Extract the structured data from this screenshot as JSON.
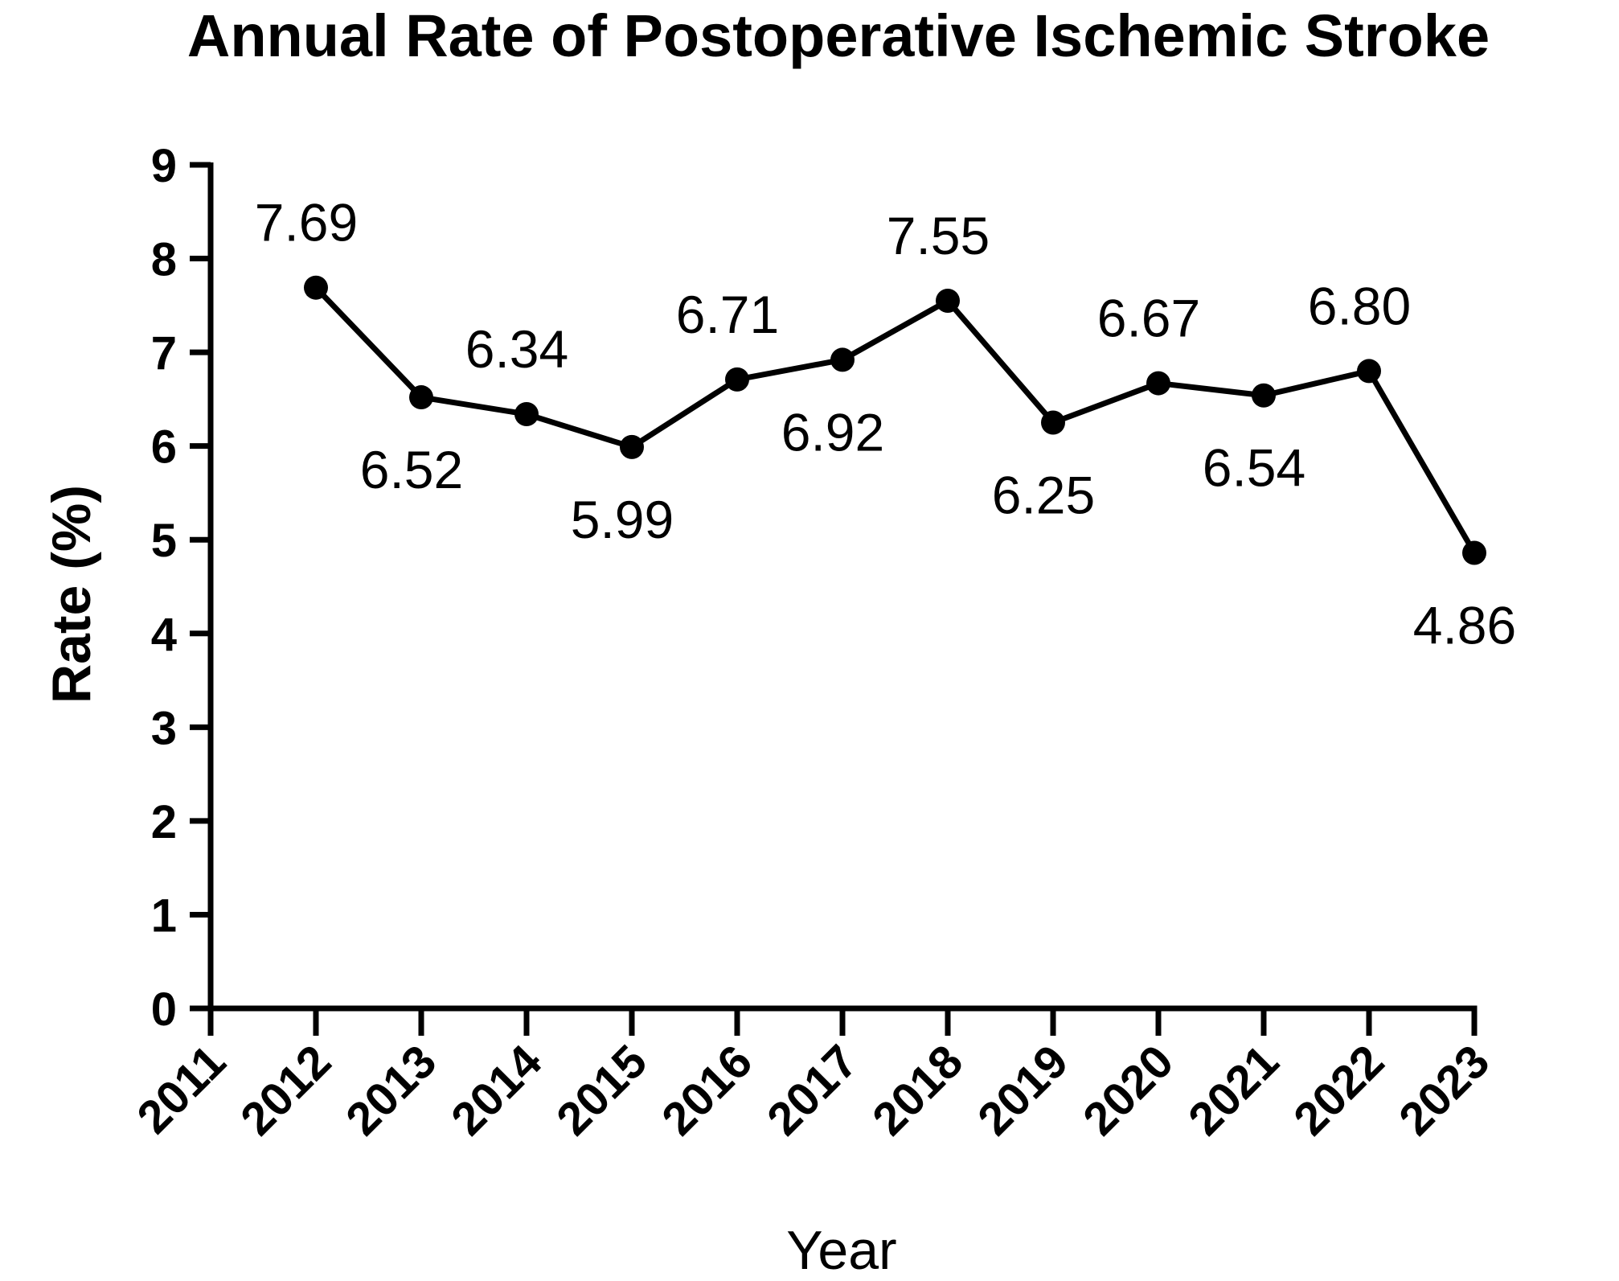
{
  "chart_data": {
    "type": "line",
    "title": "Annual Rate of Postoperative Ischemic Stroke",
    "xlabel": "Year",
    "ylabel": "Rate (%)",
    "ylim": [
      0,
      9
    ],
    "yticks": [
      "0",
      "1",
      "2",
      "3",
      "4",
      "5",
      "6",
      "7",
      "8",
      "9"
    ],
    "categories": [
      "2011",
      "2012",
      "2013",
      "2014",
      "2015",
      "2016",
      "2017",
      "2018",
      "2019",
      "2020",
      "2021",
      "2022",
      "2023"
    ],
    "series": [
      {
        "x": [
          "2012",
          "2013",
          "2014",
          "2015",
          "2016",
          "2017",
          "2018",
          "2019",
          "2020",
          "2021",
          "2022",
          "2023"
        ],
        "values": [
          7.69,
          6.52,
          6.34,
          5.99,
          6.71,
          6.92,
          7.55,
          6.25,
          6.67,
          6.54,
          6.8,
          4.86
        ],
        "labels": [
          "7.69",
          "6.52",
          "6.34",
          "5.99",
          "6.71",
          "6.92",
          "7.55",
          "6.25",
          "6.67",
          "6.54",
          "6.80",
          "4.86"
        ],
        "label_positions": [
          "above",
          "below",
          "above",
          "below",
          "above",
          "below",
          "above",
          "below",
          "above",
          "below",
          "above",
          "below"
        ]
      }
    ],
    "grid": false,
    "colors": {
      "line": "#000000",
      "marker": "#000000",
      "axis": "#000000",
      "background": "#ffffff"
    }
  }
}
